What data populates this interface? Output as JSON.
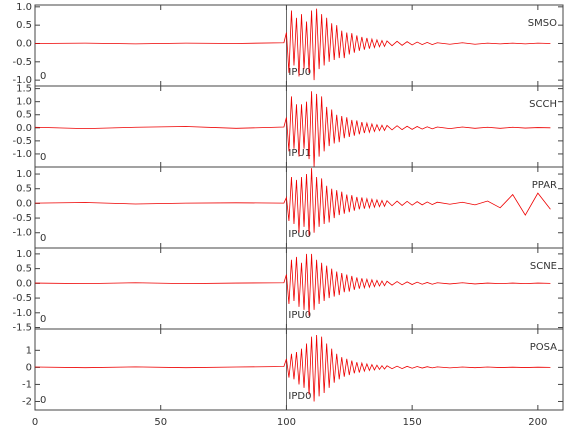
{
  "chart_data": [
    {
      "type": "line",
      "station": "SMSO",
      "corner": "0",
      "pick": {
        "x": 100,
        "label": "IPU0"
      },
      "xlim": [
        0,
        210
      ],
      "xticks": [
        0,
        50,
        100,
        150,
        200
      ],
      "ylim": [
        -1.16,
        1.05
      ],
      "yticks": [
        {
          "value": 1,
          "label": "1.0"
        },
        0.5,
        {
          "value": 0,
          "label": "0.0"
        },
        -0.5,
        {
          "value": -1,
          "label": "-1.0"
        }
      ],
      "series": [
        {
          "color": "#ee0000",
          "x": [
            0,
            20,
            40,
            60,
            80,
            99,
            100,
            101,
            102,
            103,
            104,
            105,
            106,
            107,
            108,
            109,
            110,
            111,
            112,
            113,
            114,
            115,
            116,
            117,
            118,
            119,
            120,
            121,
            122,
            123,
            124,
            125,
            126,
            127,
            128,
            129,
            130,
            131,
            132,
            133,
            134,
            135,
            136,
            137,
            138,
            139,
            140,
            142,
            144,
            146,
            148,
            150,
            152,
            154,
            156,
            158,
            160,
            165,
            170,
            175,
            180,
            185,
            190,
            195,
            200,
            205
          ],
          "values": [
            0,
            0.01,
            -0.01,
            0.01,
            0,
            0.02,
            0.3,
            -0.8,
            0.9,
            -0.6,
            0.7,
            -0.9,
            0.8,
            -0.7,
            0.6,
            -0.8,
            0.9,
            -1.0,
            0.95,
            -0.7,
            0.8,
            -0.6,
            0.7,
            -0.5,
            0.55,
            -0.45,
            0.5,
            -0.4,
            0.35,
            -0.4,
            0.3,
            -0.3,
            0.28,
            -0.25,
            0.22,
            -0.2,
            0.18,
            -0.17,
            0.15,
            -0.14,
            0.12,
            -0.11,
            0.1,
            -0.09,
            0.08,
            -0.08,
            0.07,
            -0.06,
            0.06,
            -0.05,
            0.05,
            -0.04,
            0.04,
            -0.03,
            0.03,
            -0.03,
            0.02,
            -0.02,
            0.02,
            -0.02,
            0.01,
            -0.01,
            0.01,
            -0.01,
            0.01,
            0
          ]
        }
      ]
    },
    {
      "type": "line",
      "station": "SCCH",
      "corner": "0",
      "pick": {
        "x": 100,
        "label": "IPU1"
      },
      "xlim": [
        0,
        210
      ],
      "xticks": [
        0,
        50,
        100,
        150,
        200
      ],
      "ylim": [
        -1.5,
        1.6
      ],
      "yticks": [
        1.5,
        {
          "value": 1,
          "label": "1.0"
        },
        0.5,
        {
          "value": 0,
          "label": "0.0"
        },
        -0.5,
        {
          "value": -1,
          "label": "-1.0"
        }
      ],
      "series": [
        {
          "color": "#ee0000",
          "x": [
            0,
            20,
            40,
            60,
            80,
            99,
            100,
            101,
            102,
            103,
            104,
            105,
            106,
            107,
            108,
            109,
            110,
            111,
            112,
            113,
            114,
            115,
            116,
            117,
            118,
            119,
            120,
            121,
            122,
            123,
            124,
            125,
            126,
            127,
            128,
            129,
            130,
            131,
            132,
            133,
            134,
            135,
            136,
            137,
            138,
            139,
            140,
            142,
            144,
            146,
            148,
            150,
            152,
            154,
            156,
            158,
            160,
            165,
            170,
            175,
            180,
            185,
            190,
            195,
            200,
            205
          ],
          "values": [
            0.02,
            -0.03,
            0.02,
            0.05,
            -0.02,
            0.03,
            0.4,
            -0.9,
            1.2,
            -0.8,
            0.9,
            -1.1,
            0.9,
            -0.8,
            1.0,
            -1.2,
            1.4,
            -1.5,
            1.3,
            -1.1,
            1.2,
            -0.9,
            0.8,
            -0.7,
            0.7,
            -0.6,
            0.5,
            -0.55,
            0.45,
            -0.4,
            0.4,
            -0.35,
            0.3,
            -0.3,
            0.28,
            -0.25,
            0.22,
            -0.2,
            0.18,
            -0.17,
            0.15,
            -0.14,
            0.12,
            -0.11,
            0.1,
            -0.1,
            0.09,
            -0.08,
            0.08,
            -0.07,
            0.06,
            -0.06,
            0.05,
            -0.05,
            0.04,
            -0.04,
            0.03,
            -0.03,
            0.03,
            -0.02,
            0.02,
            -0.02,
            0.02,
            -0.01,
            0.01,
            0
          ]
        }
      ]
    },
    {
      "type": "line",
      "station": "PPAR",
      "corner": "0",
      "pick": {
        "x": 100,
        "label": "IPU0"
      },
      "xlim": [
        0,
        210
      ],
      "xticks": [
        0,
        50,
        100,
        150,
        200
      ],
      "ylim": [
        -1.52,
        1.24
      ],
      "yticks": [
        {
          "value": 1,
          "label": "1.0"
        },
        0.5,
        {
          "value": 0,
          "label": "0.0"
        },
        -0.5,
        {
          "value": -1,
          "label": "-1.0"
        }
      ],
      "series": [
        {
          "color": "#ee0000",
          "x": [
            0,
            20,
            40,
            60,
            80,
            99,
            100,
            101,
            102,
            103,
            104,
            105,
            106,
            107,
            108,
            109,
            110,
            111,
            112,
            113,
            114,
            115,
            116,
            117,
            118,
            119,
            120,
            121,
            122,
            123,
            124,
            125,
            126,
            127,
            128,
            129,
            130,
            131,
            132,
            133,
            134,
            135,
            136,
            137,
            138,
            139,
            140,
            142,
            144,
            146,
            148,
            150,
            152,
            154,
            156,
            158,
            160,
            165,
            170,
            175,
            180,
            185,
            190,
            195,
            200,
            205
          ],
          "values": [
            0.01,
            0.03,
            -0.02,
            0.01,
            0.02,
            0.01,
            0.2,
            -0.6,
            0.9,
            -0.7,
            0.8,
            -1.0,
            0.9,
            -0.8,
            1.0,
            -1.1,
            1.2,
            -1.0,
            0.9,
            -0.8,
            0.85,
            -0.7,
            0.6,
            -0.65,
            0.5,
            -0.5,
            0.45,
            -0.4,
            0.4,
            -0.35,
            0.3,
            -0.3,
            0.28,
            -0.25,
            0.22,
            -0.2,
            0.2,
            -0.18,
            0.16,
            -0.15,
            0.14,
            -0.13,
            0.12,
            -0.11,
            0.1,
            -0.1,
            0.09,
            -0.08,
            0.08,
            -0.07,
            0.07,
            -0.06,
            0.06,
            -0.05,
            0.05,
            -0.04,
            0.04,
            -0.03,
            0.04,
            -0.05,
            0.08,
            -0.15,
            0.3,
            -0.4,
            0.35,
            -0.2
          ]
        }
      ]
    },
    {
      "type": "line",
      "station": "SCNE",
      "corner": "0",
      "pick": {
        "x": 100,
        "label": "IPU0"
      },
      "xlim": [
        0,
        210
      ],
      "xticks": [
        0,
        50,
        100,
        150,
        200
      ],
      "ylim": [
        -1.55,
        1.2
      ],
      "yticks": [
        {
          "value": 1,
          "label": "1.0"
        },
        0.5,
        {
          "value": 0,
          "label": "0.0"
        },
        -0.5,
        {
          "value": -1,
          "label": "-1.0"
        },
        -1.5
      ],
      "series": [
        {
          "color": "#ee0000",
          "x": [
            0,
            20,
            40,
            60,
            80,
            99,
            100,
            101,
            102,
            103,
            104,
            105,
            106,
            107,
            108,
            109,
            110,
            111,
            112,
            113,
            114,
            115,
            116,
            117,
            118,
            119,
            120,
            121,
            122,
            123,
            124,
            125,
            126,
            127,
            128,
            129,
            130,
            131,
            132,
            133,
            134,
            135,
            136,
            137,
            138,
            139,
            140,
            142,
            144,
            146,
            148,
            150,
            152,
            154,
            156,
            158,
            160,
            165,
            170,
            175,
            180,
            185,
            190,
            195,
            200,
            205
          ],
          "values": [
            0.01,
            -0.01,
            0.02,
            -0.01,
            0.01,
            0.02,
            0.3,
            -0.7,
            0.8,
            -0.6,
            0.9,
            -0.8,
            0.7,
            -0.9,
            1.0,
            -1.1,
            1.0,
            -0.9,
            0.8,
            -0.7,
            0.7,
            -0.6,
            0.6,
            -0.5,
            0.5,
            -0.45,
            0.4,
            -0.4,
            0.35,
            -0.3,
            0.3,
            -0.28,
            0.25,
            -0.22,
            0.2,
            -0.18,
            0.17,
            -0.15,
            0.14,
            -0.13,
            0.12,
            -0.11,
            0.1,
            -0.09,
            0.08,
            -0.08,
            0.07,
            -0.06,
            0.06,
            -0.05,
            0.05,
            -0.04,
            0.04,
            -0.03,
            0.03,
            -0.03,
            0.02,
            -0.02,
            0.02,
            -0.02,
            0.01,
            -0.01,
            0.01,
            -0.01,
            0.01,
            0
          ]
        }
      ]
    },
    {
      "type": "line",
      "station": "POSA",
      "corner": "0",
      "pick": {
        "x": 100,
        "label": "IPD0"
      },
      "xlim": [
        0,
        210
      ],
      "xticks": [
        0,
        50,
        100,
        150,
        200
      ],
      "ylim": [
        -2.5,
        2.25
      ],
      "yticks": [
        1,
        0,
        -1,
        -2
      ],
      "show_x_labels": true,
      "series": [
        {
          "color": "#ee0000",
          "x": [
            0,
            20,
            40,
            60,
            80,
            99,
            100,
            101,
            102,
            103,
            104,
            105,
            106,
            107,
            108,
            109,
            110,
            111,
            112,
            113,
            114,
            115,
            116,
            117,
            118,
            119,
            120,
            121,
            122,
            123,
            124,
            125,
            126,
            127,
            128,
            129,
            130,
            131,
            132,
            133,
            134,
            135,
            136,
            137,
            138,
            139,
            140,
            142,
            144,
            146,
            148,
            150,
            152,
            154,
            156,
            158,
            160,
            165,
            170,
            175,
            180,
            185,
            190,
            195,
            200,
            205
          ],
          "values": [
            0.02,
            -0.02,
            0.03,
            -0.02,
            0.02,
            0.05,
            0.5,
            -0.6,
            0.8,
            -0.7,
            0.9,
            -1.0,
            1.1,
            -1.2,
            1.4,
            -1.6,
            1.8,
            -2.0,
            1.9,
            -1.7,
            1.8,
            -1.5,
            1.4,
            -1.2,
            1.1,
            -0.9,
            0.8,
            -0.7,
            0.6,
            -0.55,
            0.5,
            -0.45,
            0.4,
            -0.35,
            0.3,
            -0.3,
            0.25,
            -0.22,
            0.2,
            -0.18,
            0.16,
            -0.15,
            0.13,
            -0.12,
            0.1,
            -0.1,
            0.09,
            -0.08,
            0.07,
            -0.07,
            0.06,
            -0.05,
            0.05,
            -0.04,
            0.04,
            -0.03,
            0.03,
            -0.03,
            0.02,
            -0.02,
            0.02,
            -0.01,
            0.01,
            -0.01,
            0.01,
            0
          ]
        }
      ]
    }
  ]
}
